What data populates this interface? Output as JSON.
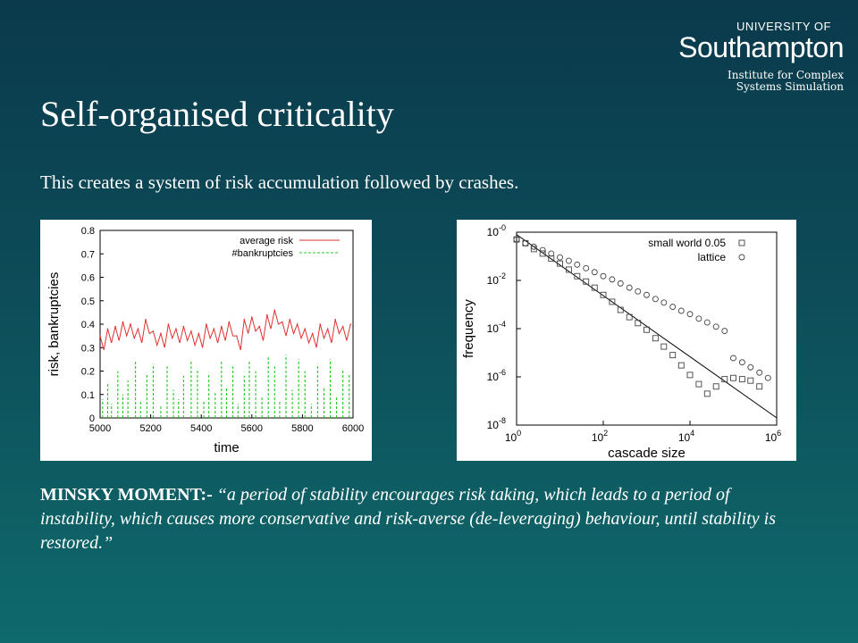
{
  "logo": {
    "top": "UNIVERSITY OF",
    "main": "Southampton",
    "sub_line1": "Institute for Complex",
    "sub_line2": "Systems Simulation"
  },
  "slide": {
    "title": "Self-organised criticality",
    "subtitle": "This creates a system of risk accumulation followed by crashes.",
    "quote_lead": "MINSKY MOMENT:-",
    "quote_body": " “a period of stability encourages risk taking, which leads to a period of instability, which causes more conservative and risk-averse (de-leveraging) behaviour, until stability is restored.”"
  },
  "chart_data": [
    {
      "type": "line",
      "xlabel": "time",
      "ylabel": "risk, bankruptcies",
      "xlim": [
        5000,
        6000
      ],
      "ylim": [
        0,
        0.8
      ],
      "x_ticks": [
        "5000",
        "5200",
        "5400",
        "5600",
        "5800",
        "6000"
      ],
      "y_ticks": [
        "0",
        "0.1",
        "0.2",
        "0.3",
        "0.4",
        "0.5",
        "0.6",
        "0.7",
        "0.8"
      ],
      "legend_position": "top-right",
      "colors": {
        "average_risk": "#e03030",
        "bankruptcies": "#22c822"
      },
      "series": [
        {
          "name": "average risk",
          "style": "solid",
          "x": [
            5000,
            5030,
            5060,
            5090,
            5120,
            5150,
            5180,
            5210,
            5240,
            5270,
            5300,
            5330,
            5360,
            5390,
            5420,
            5450,
            5480,
            5510,
            5540,
            5570,
            5600,
            5630,
            5660,
            5690,
            5720,
            5750,
            5780,
            5810,
            5840,
            5870,
            5900,
            5930,
            5960,
            5990
          ],
          "y": [
            0.35,
            0.38,
            0.39,
            0.41,
            0.4,
            0.38,
            0.42,
            0.37,
            0.36,
            0.4,
            0.38,
            0.39,
            0.37,
            0.36,
            0.4,
            0.38,
            0.39,
            0.41,
            0.35,
            0.42,
            0.43,
            0.39,
            0.44,
            0.46,
            0.41,
            0.42,
            0.4,
            0.38,
            0.36,
            0.4,
            0.38,
            0.42,
            0.39,
            0.4
          ]
        },
        {
          "name": "#bankruptcies",
          "style": "dashed",
          "x": [
            5010,
            5030,
            5045,
            5070,
            5090,
            5110,
            5140,
            5160,
            5185,
            5210,
            5240,
            5265,
            5290,
            5310,
            5330,
            5360,
            5385,
            5410,
            5430,
            5455,
            5480,
            5500,
            5525,
            5545,
            5570,
            5590,
            5615,
            5640,
            5665,
            5690,
            5710,
            5735,
            5760,
            5785,
            5810,
            5835,
            5860,
            5885,
            5910,
            5935,
            5960,
            5985
          ],
          "y": [
            0.08,
            0.15,
            0.06,
            0.2,
            0.1,
            0.16,
            0.24,
            0.07,
            0.19,
            0.23,
            0.05,
            0.22,
            0.12,
            0.08,
            0.18,
            0.24,
            0.21,
            0.07,
            0.19,
            0.11,
            0.24,
            0.13,
            0.22,
            0.06,
            0.18,
            0.24,
            0.2,
            0.09,
            0.26,
            0.22,
            0.07,
            0.27,
            0.12,
            0.25,
            0.2,
            0.06,
            0.23,
            0.13,
            0.25,
            0.09,
            0.21,
            0.19
          ]
        }
      ]
    },
    {
      "type": "scatter",
      "xlabel": "cascade size",
      "ylabel": "frequency",
      "log_x": true,
      "log_y": true,
      "xlim": [
        1,
        1000000
      ],
      "ylim": [
        1e-08,
        1
      ],
      "x_ticks": [
        "10^0",
        "10^2",
        "10^4",
        "10^6"
      ],
      "y_ticks": [
        "10^-0",
        "10^-2",
        "10^-4",
        "10^-6",
        "10^-8"
      ],
      "legend_position": "top-right",
      "series": [
        {
          "name": "small world 0.05",
          "marker": "square",
          "x": [
            1,
            1.6,
            2.5,
            4,
            6.3,
            10,
            16,
            25,
            40,
            63,
            100,
            160,
            250,
            400,
            630,
            1000,
            1600,
            2500,
            4000,
            6300,
            10000,
            16000,
            25000,
            40000,
            63000,
            100000,
            160000,
            250000,
            400000
          ],
          "y": [
            0.5,
            0.35,
            0.2,
            0.13,
            0.08,
            0.05,
            0.028,
            0.015,
            0.009,
            0.005,
            0.0025,
            0.0013,
            0.0006,
            0.0003,
            0.00017,
            9e-05,
            4e-05,
            1.8e-05,
            8e-06,
            3e-06,
            1.2e-06,
            5e-07,
            2e-07,
            4e-07,
            8e-07,
            9e-07,
            8e-07,
            7e-07,
            4e-07
          ]
        },
        {
          "name": "lattice",
          "marker": "circle",
          "x": [
            1,
            1.6,
            2.5,
            4,
            6.3,
            10,
            16,
            25,
            40,
            63,
            100,
            160,
            250,
            400,
            630,
            1000,
            1600,
            2500,
            4000,
            6300,
            10000,
            16000,
            25000,
            40000,
            63000,
            100000,
            160000,
            250000,
            400000,
            630000
          ],
          "y": [
            0.5,
            0.35,
            0.25,
            0.18,
            0.13,
            0.09,
            0.065,
            0.045,
            0.032,
            0.022,
            0.015,
            0.011,
            0.0075,
            0.005,
            0.0035,
            0.0025,
            0.0017,
            0.0012,
            0.0008,
            0.00055,
            0.0004,
            0.00026,
            0.00018,
            0.00012,
            8e-05,
            6e-06,
            4e-06,
            2.5e-06,
            1.5e-06,
            9e-07
          ]
        },
        {
          "name": "",
          "style": "fit-line",
          "x": [
            1,
            1000000
          ],
          "y": [
            0.8,
            2e-08
          ]
        }
      ]
    }
  ]
}
